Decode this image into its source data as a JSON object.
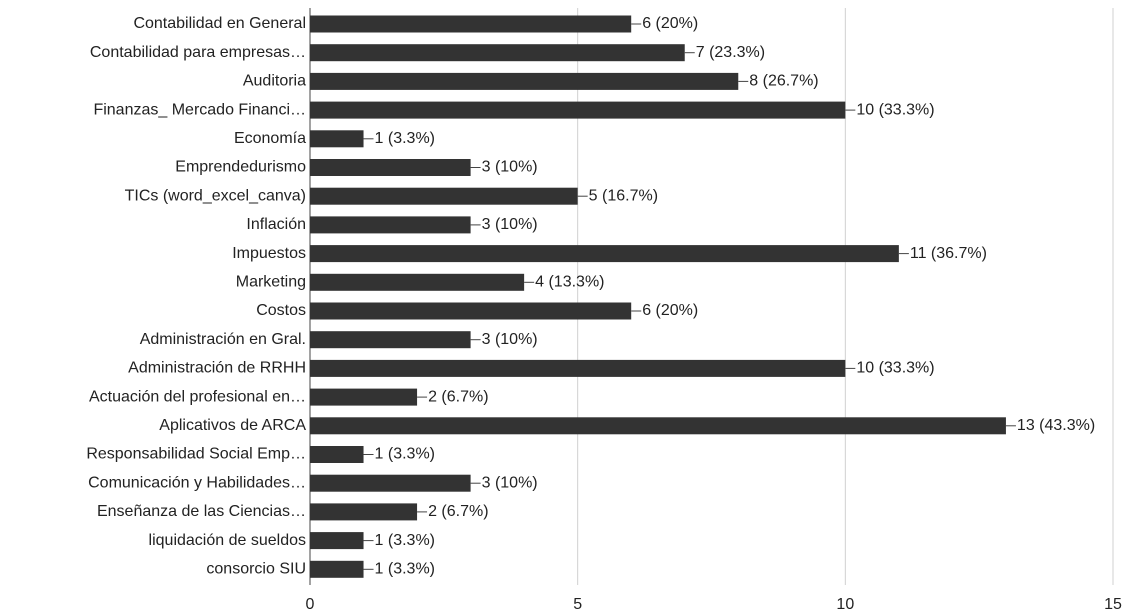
{
  "chart_data": {
    "type": "bar",
    "orientation": "horizontal",
    "categories": [
      "Contabilidad en General",
      "Contabilidad para empresas…",
      "Auditoria",
      "Finanzas_ Mercado Financi…",
      "Economía",
      "Emprendedurismo",
      "TICs (word_excel_canva)",
      "Inflación",
      "Impuestos",
      "Marketing",
      "Costos",
      "Administración en Gral.",
      "Administración de RRHH",
      "Actuación del profesional en…",
      "Aplicativos de ARCA",
      "Responsabilidad Social Emp…",
      "Comunicación y Habilidades…",
      "Enseñanza de las Ciencias…",
      "liquidación de sueldos",
      "consorcio SIU"
    ],
    "values": [
      6,
      7,
      8,
      10,
      1,
      3,
      5,
      3,
      11,
      4,
      6,
      3,
      10,
      2,
      13,
      1,
      3,
      2,
      1,
      1
    ],
    "value_labels": [
      "6 (20%)",
      "7 (23.3%)",
      "8 (26.7%)",
      "10 (33.3%)",
      "1 (3.3%)",
      "3 (10%)",
      "5 (16.7%)",
      "3 (10%)",
      "11 (36.7%)",
      "4 (13.3%)",
      "6 (20%)",
      "3 (10%)",
      "10 (33.3%)",
      "2 (6.7%)",
      "13 (43.3%)",
      "1 (3.3%)",
      "3 (10%)",
      "2 (6.7%)",
      "1 (3.3%)",
      "1 (3.3%)"
    ],
    "color": "#333333",
    "xlim": [
      0,
      15
    ],
    "xticks": [
      0,
      5,
      10,
      15
    ],
    "grid": true
  }
}
